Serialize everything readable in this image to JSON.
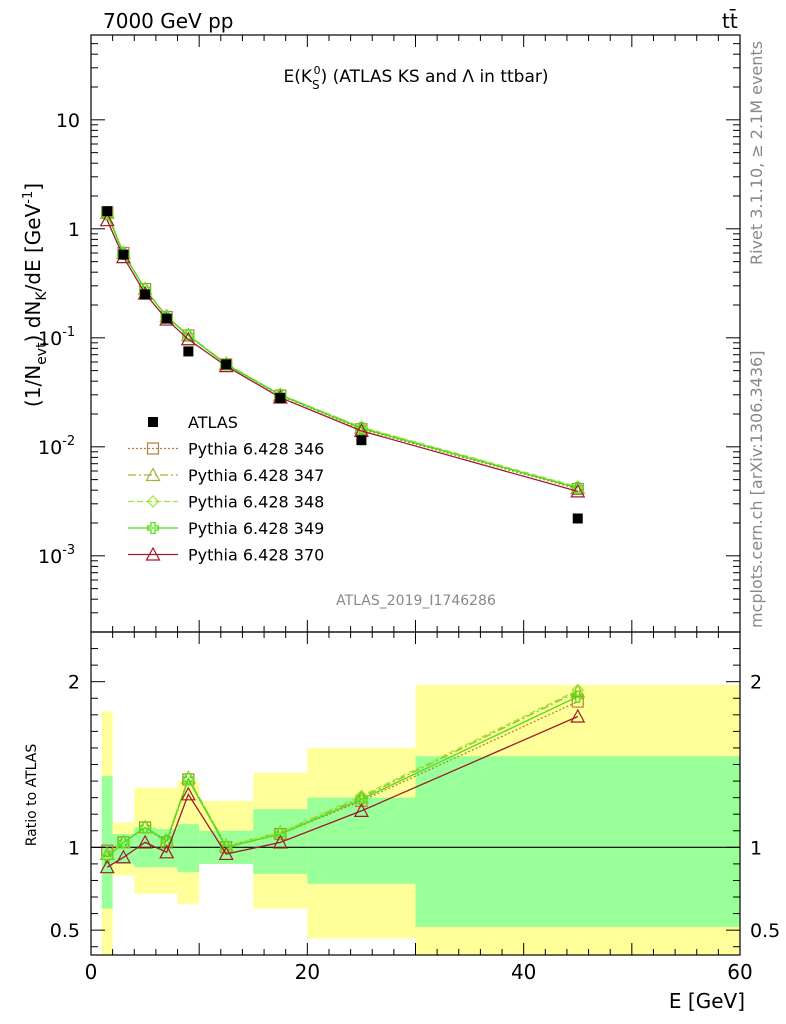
{
  "header": {
    "energy_label": "7000 GeV pp",
    "process_label": "tt̄",
    "rivet_label": "Rivet 3.1.10, ≥ 2.1M events",
    "mcplots_label": "mcplots.cern.ch [arXiv:1306.3436]",
    "analysis_label": "ATLAS_2019_I1746286"
  },
  "chart_data": [
    {
      "type": "line",
      "title": "E(K_S^0) (ATLAS KS and Λ in ttbar)",
      "title_main": "E(K",
      "title_sub": "S",
      "title_sup": "0",
      "title_rest": ") (ATLAS KS and Λ in ttbar)",
      "ylabel": "(1/Nevt) dNK/dE [GeV⁻¹]",
      "ylabel_parts": {
        "a": "(1/N",
        "b": "evt",
        "c": ") dN",
        "d": "K",
        "e": "/dE [GeV",
        "f": "-1",
        "g": "]"
      },
      "yscale": "log",
      "xlim": [
        0,
        60
      ],
      "ylim": [
        0.0002,
        60
      ],
      "yticks": [
        {
          "value": 0.001,
          "base": "10",
          "exp": "-3"
        },
        {
          "value": 0.01,
          "base": "10",
          "exp": "-2"
        },
        {
          "value": 0.1,
          "base": "10",
          "exp": "-1"
        },
        {
          "value": 1,
          "base": "1",
          "exp": ""
        },
        {
          "value": 10,
          "base": "10",
          "exp": ""
        }
      ],
      "legend_position": "center-left",
      "data": {
        "name": "ATLAS",
        "x": [
          1.5,
          3,
          5,
          7,
          9,
          12.5,
          17.5,
          25,
          45
        ],
        "y": [
          1.45,
          0.58,
          0.25,
          0.15,
          0.075,
          0.057,
          0.028,
          0.0115,
          0.0022
        ]
      },
      "series": [
        {
          "name": "Pythia 6.428 346",
          "color": "#b5803a",
          "dash": "2,2",
          "marker": "square",
          "x": [
            1.5,
            3,
            5,
            7,
            9,
            12.5,
            17.5,
            25,
            45
          ],
          "y": [
            1.42,
            0.6,
            0.28,
            0.155,
            0.105,
            0.057,
            0.0295,
            0.0145,
            0.0041
          ]
        },
        {
          "name": "Pythia 6.428 347",
          "color": "#9fb533",
          "dash": "8,3,2,3",
          "marker": "triangle",
          "x": [
            1.5,
            3,
            5,
            7,
            9,
            12.5,
            17.5,
            25,
            45
          ],
          "y": [
            1.4,
            0.6,
            0.28,
            0.158,
            0.106,
            0.058,
            0.03,
            0.015,
            0.0042
          ]
        },
        {
          "name": "Pythia 6.428 348",
          "color": "#9ce63c",
          "dash": "6,3",
          "marker": "diamond",
          "x": [
            1.5,
            3,
            5,
            7,
            9,
            12.5,
            17.5,
            25,
            45
          ],
          "y": [
            1.38,
            0.6,
            0.28,
            0.157,
            0.106,
            0.058,
            0.0302,
            0.0152,
            0.0043
          ]
        },
        {
          "name": "Pythia 6.428 349",
          "color": "#47e014",
          "dash": "",
          "marker": "cross",
          "x": [
            1.5,
            3,
            5,
            7,
            9,
            12.5,
            17.5,
            25,
            45
          ],
          "y": [
            1.36,
            0.59,
            0.28,
            0.156,
            0.105,
            0.057,
            0.0298,
            0.0148,
            0.0042
          ]
        },
        {
          "name": "Pythia 6.428 370",
          "color": "#a01a2a",
          "dash": "",
          "marker": "triangle-open",
          "x": [
            1.5,
            3,
            5,
            7,
            9,
            12.5,
            17.5,
            25,
            45
          ],
          "y": [
            1.2,
            0.55,
            0.255,
            0.147,
            0.097,
            0.055,
            0.0283,
            0.014,
            0.0039
          ]
        }
      ]
    },
    {
      "type": "line",
      "ylabel": "Ratio to ATLAS",
      "xlabel": "E [GeV]",
      "xlim": [
        0,
        60
      ],
      "ylim": [
        0.35,
        2.3
      ],
      "xticks": [
        "0",
        "20",
        "40",
        "60"
      ],
      "yticks": [
        "0.5",
        "1",
        "2"
      ],
      "bins": [
        {
          "lo": 1,
          "hi": 2,
          "stat": [
            0.63,
            1.43
          ],
          "total": [
            0.0,
            1.82
          ]
        },
        {
          "lo": 2,
          "hi": 4,
          "stat": [
            0.9,
            1.08
          ],
          "total": [
            0.83,
            1.15
          ]
        },
        {
          "lo": 4,
          "hi": 6,
          "stat": [
            0.88,
            1.12
          ],
          "total": [
            0.72,
            1.36
          ]
        },
        {
          "lo": 6,
          "hi": 8,
          "stat": [
            0.88,
            1.11
          ],
          "total": [
            0.72,
            1.36
          ]
        },
        {
          "lo": 8,
          "hi": 10,
          "stat": [
            0.85,
            1.14
          ],
          "total": [
            0.66,
            1.4
          ]
        },
        {
          "lo": 10,
          "hi": 15,
          "stat": [
            0.9,
            1.1
          ],
          "total": [
            0.9,
            1.28
          ]
        },
        {
          "lo": 15,
          "hi": 20,
          "stat": [
            0.84,
            1.23
          ],
          "total": [
            0.63,
            1.45
          ]
        },
        {
          "lo": 20,
          "hi": 30,
          "stat": [
            0.78,
            1.3
          ],
          "total": [
            0.45,
            1.6
          ]
        },
        {
          "lo": 30,
          "hi": 60,
          "stat": [
            0.52,
            1.55
          ],
          "total": [
            0.3,
            1.98
          ]
        }
      ],
      "series": [
        {
          "name": "Pythia 6.428 346",
          "x": [
            1.5,
            3,
            5,
            7,
            9,
            12.5,
            17.5,
            25,
            45
          ],
          "y": [
            0.98,
            1.03,
            1.12,
            1.03,
            1.41,
            1.0,
            1.08,
            1.28,
            1.88
          ]
        },
        {
          "name": "Pythia 6.428 347",
          "x": [
            1.5,
            3,
            5,
            7,
            9,
            12.5,
            17.5,
            25,
            45
          ],
          "y": [
            0.96,
            1.03,
            1.12,
            1.04,
            1.42,
            1.01,
            1.09,
            1.3,
            1.94
          ]
        },
        {
          "name": "Pythia 6.428 348",
          "x": [
            1.5,
            3,
            5,
            7,
            9,
            12.5,
            17.5,
            25,
            45
          ],
          "y": [
            0.95,
            1.03,
            1.12,
            1.04,
            1.42,
            1.01,
            1.09,
            1.31,
            1.95
          ]
        },
        {
          "name": "Pythia 6.428 349",
          "x": [
            1.5,
            3,
            5,
            7,
            9,
            12.5,
            17.5,
            25,
            45
          ],
          "y": [
            0.94,
            1.03,
            1.12,
            1.04,
            1.41,
            1.0,
            1.08,
            1.29,
            1.91
          ]
        },
        {
          "name": "Pythia 6.428 370",
          "x": [
            1.5,
            3,
            5,
            7,
            9,
            12.5,
            17.5,
            25,
            45
          ],
          "y": [
            0.88,
            0.94,
            1.03,
            0.97,
            1.32,
            0.96,
            1.03,
            1.22,
            1.79
          ]
        }
      ]
    }
  ]
}
